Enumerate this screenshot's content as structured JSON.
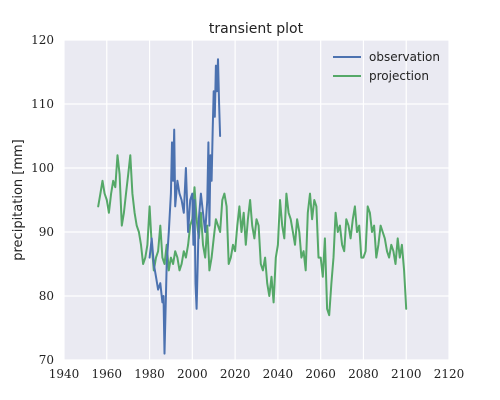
{
  "chart_data": {
    "type": "line",
    "title": "transient plot",
    "xlabel": "",
    "ylabel": "precipitation [mm]",
    "xlim": [
      1940,
      2120
    ],
    "ylim": [
      70,
      120
    ],
    "xticks": [
      1940,
      1960,
      1980,
      2000,
      2020,
      2040,
      2060,
      2080,
      2100,
      2120
    ],
    "yticks": [
      70,
      80,
      90,
      100,
      110,
      120
    ],
    "grid": true,
    "legend_position": "top-right",
    "colors": {
      "plot_bg": "#eaeaf2",
      "grid": "#ffffff",
      "observation": "#4c72b0",
      "projection": "#55a868"
    },
    "series": [
      {
        "name": "observation",
        "color": "#4c72b0",
        "x": [
          1980,
          1981,
          1982,
          1983,
          1984,
          1985,
          1986,
          1986.5,
          1987,
          1987.5,
          1988,
          1989,
          1990,
          1990.5,
          1991,
          1991.5,
          1992,
          1993,
          1994,
          1995,
          1996,
          1997,
          1998,
          1999,
          2000,
          2000.5,
          2001,
          2001.5,
          2002,
          2003,
          2004,
          2005,
          2006,
          2007,
          2007.5,
          2008,
          2008.5,
          2009,
          2009.5,
          2010,
          2010.5,
          2011,
          2011.5,
          2012,
          2012.5,
          2013
        ],
        "y": [
          86,
          89,
          85,
          83,
          81,
          82,
          79,
          80,
          71,
          78,
          85,
          90,
          96,
          104,
          98,
          106,
          94,
          98,
          96,
          95,
          93,
          100,
          90,
          95,
          96,
          88,
          95,
          82,
          78,
          92,
          96,
          93,
          90,
          95,
          104,
          91,
          102,
          98,
          106,
          112,
          108,
          116,
          112,
          117,
          110,
          105
        ]
      },
      {
        "name": "projection",
        "color": "#55a868",
        "x": [
          1956,
          1957,
          1958,
          1959,
          1960,
          1961,
          1962,
          1963,
          1964,
          1965,
          1966,
          1967,
          1968,
          1969,
          1970,
          1971,
          1972,
          1973,
          1974,
          1975,
          1976,
          1977,
          1978,
          1979,
          1980,
          1981,
          1982,
          1983,
          1984,
          1985,
          1986,
          1987,
          1988,
          1989,
          1990,
          1991,
          1992,
          1993,
          1994,
          1995,
          1996,
          1997,
          1998,
          1999,
          2000,
          2001,
          2002,
          2003,
          2004,
          2005,
          2006,
          2007,
          2008,
          2009,
          2010,
          2011,
          2012,
          2013,
          2014,
          2015,
          2016,
          2017,
          2018,
          2019,
          2020,
          2021,
          2022,
          2023,
          2024,
          2025,
          2026,
          2027,
          2028,
          2029,
          2030,
          2031,
          2032,
          2033,
          2034,
          2035,
          2036,
          2037,
          2038,
          2039,
          2040,
          2041,
          2042,
          2043,
          2044,
          2045,
          2046,
          2047,
          2048,
          2049,
          2050,
          2051,
          2052,
          2053,
          2054,
          2055,
          2056,
          2057,
          2058,
          2059,
          2060,
          2061,
          2062,
          2063,
          2064,
          2065,
          2066,
          2067,
          2068,
          2069,
          2070,
          2071,
          2072,
          2073,
          2074,
          2075,
          2076,
          2077,
          2078,
          2079,
          2080,
          2081,
          2082,
          2083,
          2084,
          2085,
          2086,
          2087,
          2088,
          2089,
          2090,
          2091,
          2092,
          2093,
          2094,
          2095,
          2096,
          2097,
          2098,
          2099,
          2100
        ],
        "y": [
          94,
          96,
          98,
          96,
          95,
          93,
          96,
          98,
          97,
          102,
          99,
          91,
          93,
          96,
          99,
          102,
          96,
          93,
          91,
          90,
          88,
          85,
          86,
          88,
          94,
          88,
          84,
          86,
          87,
          91,
          86,
          85,
          88,
          84,
          86,
          85,
          87,
          86,
          84,
          85,
          87,
          86,
          88,
          91,
          92,
          97,
          92,
          89,
          93,
          88,
          86,
          91,
          84,
          86,
          89,
          92,
          91,
          90,
          95,
          96,
          94,
          85,
          86,
          88,
          87,
          91,
          94,
          90,
          93,
          88,
          92,
          95,
          91,
          89,
          92,
          91,
          85,
          84,
          86,
          82,
          80,
          83,
          79,
          86,
          88,
          95,
          91,
          89,
          96,
          93,
          92,
          90,
          88,
          92,
          90,
          86,
          87,
          84,
          93,
          96,
          92,
          95,
          94,
          86,
          86,
          83,
          89,
          78,
          77,
          82,
          86,
          93,
          90,
          91,
          88,
          87,
          92,
          91,
          89,
          92,
          94,
          90,
          91,
          86,
          86,
          87,
          94,
          93,
          90,
          91,
          86,
          88,
          91,
          90,
          89,
          87,
          86,
          88,
          87,
          85,
          89,
          86,
          88,
          84,
          78
        ]
      }
    ]
  }
}
